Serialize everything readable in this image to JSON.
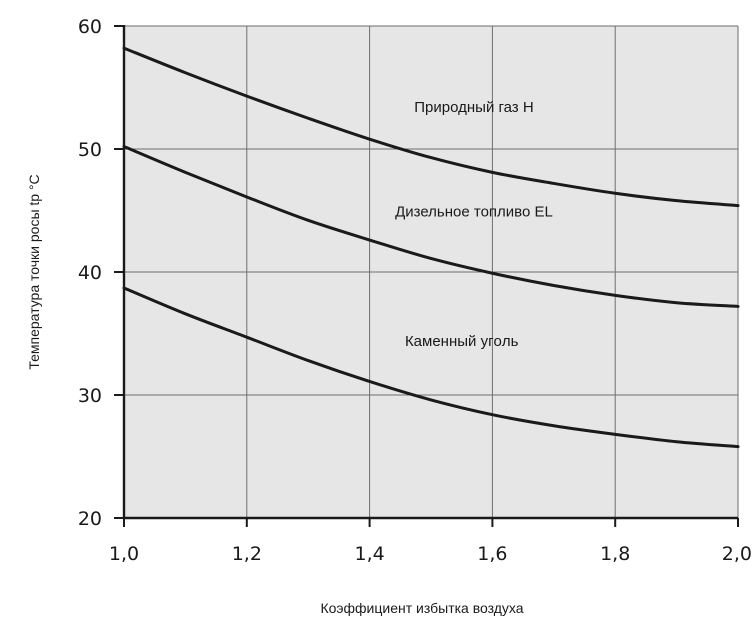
{
  "chart_data": {
    "type": "line",
    "xlabel": "Коэффициент избытка воздуха",
    "ylabel": "Температура точки росы tp °C",
    "xlim": [
      1.0,
      2.0
    ],
    "ylim": [
      20,
      60
    ],
    "xticks": [
      1.0,
      1.2,
      1.4,
      1.6,
      1.8,
      2.0
    ],
    "xtick_labels": [
      "1,0",
      "1,2",
      "1,4",
      "1,6",
      "1,8",
      "2,0"
    ],
    "yticks": [
      20,
      30,
      40,
      50,
      60
    ],
    "ytick_labels": [
      "20",
      "30",
      "40",
      "50",
      "60"
    ],
    "grid": true,
    "background": "#e6e6e6",
    "line_color": "#1a1a1a",
    "series": [
      {
        "name": "Природный газ H",
        "x": [
          1.0,
          1.1,
          1.2,
          1.3,
          1.4,
          1.5,
          1.6,
          1.7,
          1.8,
          1.9,
          2.0
        ],
        "y": [
          58.2,
          56.2,
          54.3,
          52.5,
          50.8,
          49.3,
          48.1,
          47.2,
          46.4,
          45.8,
          45.4
        ]
      },
      {
        "name": "Дизельное топливо EL",
        "x": [
          1.0,
          1.1,
          1.2,
          1.3,
          1.4,
          1.5,
          1.6,
          1.7,
          1.8,
          1.9,
          2.0
        ],
        "y": [
          50.2,
          48.1,
          46.1,
          44.2,
          42.6,
          41.1,
          39.9,
          38.9,
          38.1,
          37.5,
          37.2
        ]
      },
      {
        "name": "Каменный угoль",
        "x": [
          1.0,
          1.1,
          1.2,
          1.3,
          1.4,
          1.5,
          1.6,
          1.7,
          1.8,
          1.9,
          2.0
        ],
        "y": [
          38.7,
          36.6,
          34.7,
          32.8,
          31.1,
          29.6,
          28.4,
          27.5,
          26.8,
          26.2,
          25.8
        ]
      }
    ],
    "series_label_anchor": [
      {
        "x": 1.57,
        "y": 53.0
      },
      {
        "x": 1.57,
        "y": 44.5
      },
      {
        "x": 1.55,
        "y": 34.0
      }
    ]
  }
}
